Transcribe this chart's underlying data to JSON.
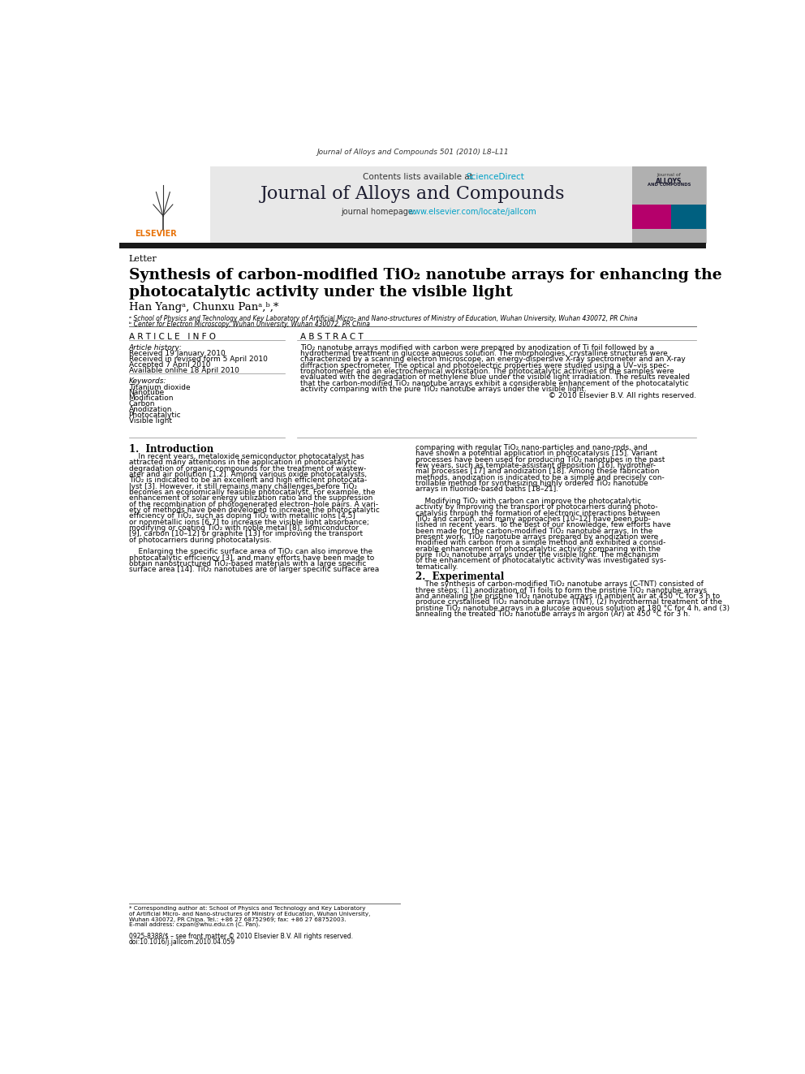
{
  "page_width": 9.92,
  "page_height": 13.23,
  "background_color": "#ffffff",
  "header_journal_ref": "Journal of Alloys and Compounds 501 (2010) L8–L11",
  "header_bg_color": "#e8e8e8",
  "header_bar_color": "#1a1a1a",
  "contents_text": "Contents lists available at ",
  "sciencedirect_text": "ScienceDirect",
  "sciencedirect_color": "#00a0c6",
  "journal_title": "Journal of Alloys and Compounds",
  "journal_homepage_text": "journal homepage: ",
  "journal_homepage_url": "www.elsevier.com/locate/jallcom",
  "journal_homepage_color": "#00a0c6",
  "elsevier_logo_color": "#e8730a",
  "letter_label": "Letter",
  "article_title_line1": "Synthesis of carbon-modified TiO₂ nanotube arrays for enhancing the",
  "article_title_line2": "photocatalytic activity under the visible light",
  "authors_line": "Han Yangᵃ, Chunxu Panᵃ’ᵇ,*",
  "affil_a": "ᵃ School of Physics and Technology and Key Laboratory of Artificial Micro- and Nano-structures of Ministry of Education, Wuhan University, Wuhan 430072, PR China",
  "affil_b": "ᵇ Center for Electron Microscopy, Wuhan University, Wuhan 430072, PR China",
  "section_article_info": "A R T I C L E   I N F O",
  "article_history_label": "Article history:",
  "received": "Received 19 January 2010",
  "received_revised": "Received in revised form 5 April 2010",
  "accepted": "Accepted 7 April 2010",
  "available": "Available online 18 April 2010",
  "keywords_label": "Keywords:",
  "keywords": [
    "Titanium dioxide",
    "Nanotube",
    "Modification",
    "Carbon",
    "Anodization",
    "Photocatalytic",
    "Visible light"
  ],
  "section_abstract": "A B S T R A C T",
  "copyright": "© 2010 Elsevier B.V. All rights reserved.",
  "section1_title": "1.  Introduction",
  "section2_title": "2.  Experimental",
  "footnote_email": "E-mail address: cxpan@whu.edu.cn (C. Pan).",
  "bottom_issn": "0925-8388/$ – see front matter © 2010 Elsevier B.V. All rights reserved.",
  "bottom_doi": "doi:10.1016/j.jallcom.2010.04.059",
  "abstract_lines": [
    "TiO₂ nanotube arrays modified with carbon were prepared by anodization of Ti foil followed by a",
    "hydrothermal treatment in glucose aqueous solution. The morphologies, crystalline structures were",
    "characterized by a scanning electron microscope, an energy-dispersive X-ray spectrometer and an X-ray",
    "diffraction spectrometer. The optical and photoelectric properties were studied using a UV–vis spec-",
    "trophotometer and an electrochemical workstation. The photocatalytic activities of the samples were",
    "evaluated with the degradation of methylene blue under the visible light irradiation. The results revealed",
    "that the carbon-modified TiO₂ nanotube arrays exhibit a considerable enhancement of the photocatalytic",
    "activity comparing with the pure TiO₂ nanotube arrays under the visible light."
  ],
  "intro_left": [
    "    In recent years, metaloxide semiconductor photocatalyst has",
    "attracted many attentions in the application in photocatalytic",
    "degradation of organic compounds for the treatment of wastew-",
    "ater and air pollution [1,2]. Among various oxide photocatalysts,",
    "TiO₂ is indicated to be an excellent and high efficient photocata-",
    "lyst [3]. However, it still remains many challenges before TiO₂",
    "becomes an economically feasible photocatalyst. For example, the",
    "enhancement of solar energy utilization ratio and the suppression",
    "of the recombination of photogenerated electron–hole pairs. A vari-",
    "ety of methods have been developed to increase the photocatalytic",
    "efficiency of TiO₂, such as doping TiO₂ with metallic ions [4,5]",
    "or nonmetallic ions [6,7] to increase the visible light absorbance;",
    "modifying or coating TiO₂ with noble metal [8], semiconductor",
    "[9], carbon [10–12] or graphite [13] for improving the transport",
    "of photocarriers during photocatalysis.",
    "",
    "    Enlarging the specific surface area of TiO₂ can also improve the",
    "photocatalytic efficiency [3], and many efforts have been made to",
    "obtain nanostructured TiO₂-based materials with a large specific",
    "surface area [14]. TiO₂ nanotubes are of larger specific surface area"
  ],
  "intro_right": [
    "comparing with regular TiO₂ nano-particles and nano-rods, and",
    "have shown a potential application in photocatalysis [15]. Variant",
    "processes have been used for producing TiO₂ nanotubes in the past",
    "few years, such as template-assistant deposition [16], hydrother-",
    "mal processes [17] and anodization [18]. Among these fabrication",
    "methods, anodization is indicated to be a simple and precisely con-",
    "trollable method for synthesizing highly ordered TiO₂ nanotube",
    "arrays in fluoride-based baths [18–21].",
    "",
    "    Modifying TiO₂ with carbon can improve the photocatalytic",
    "activity by improving the transport of photocarriers during photo-",
    "catalysis through the formation of electronic interactions between",
    "TiO₂ and carbon, and many approaches [10–12] have been pub-",
    "lished in recent years. To the best of our knowledge, few efforts have",
    "been made for the carbon-modified TiO₂ nanotube arrays. In the",
    "present work, TiO₂ nanotube arrays prepared by anodization were",
    "modified with carbon from a simple method and exhibited a consid-",
    "erable enhancement of photocatalytic activity comparing with the",
    "pure TiO₂ nanotube arrays under the visible light. The mechanism",
    "of the enhancement of photocatalytic activity was investigated sys-",
    "tematically."
  ],
  "experimental_lines": [
    "    The synthesis of carbon-modified TiO₂ nanotube arrays (C-TNT) consisted of",
    "three steps: (1) anodization of Ti foils to form the pristine TiO₂ nanotube arrays",
    "and annealing the pristine TiO₂ nanotube arrays in ambient air at 450 °C for 3 h to",
    "produce crystallised TiO₂ nanotube arrays (TNT), (2) hydrothermal treatment of the",
    "pristine TiO₂ nanotube arrays in a glucose aqueous solution at 180 °C for 4 h, and (3)",
    "annealing the treated TiO₂ nanotube arrays in argon (Ar) at 450 °C for 3 h."
  ],
  "footnote_lines": [
    "* Corresponding author at: School of Physics and Technology and Key Laboratory",
    "of Artificial Micro- and Nano-structures of Ministry of Education, Wuhan University,",
    "Wuhan 430072, PR China. Tel.: +86 27 68752969; fax: +86 27 68752003."
  ]
}
